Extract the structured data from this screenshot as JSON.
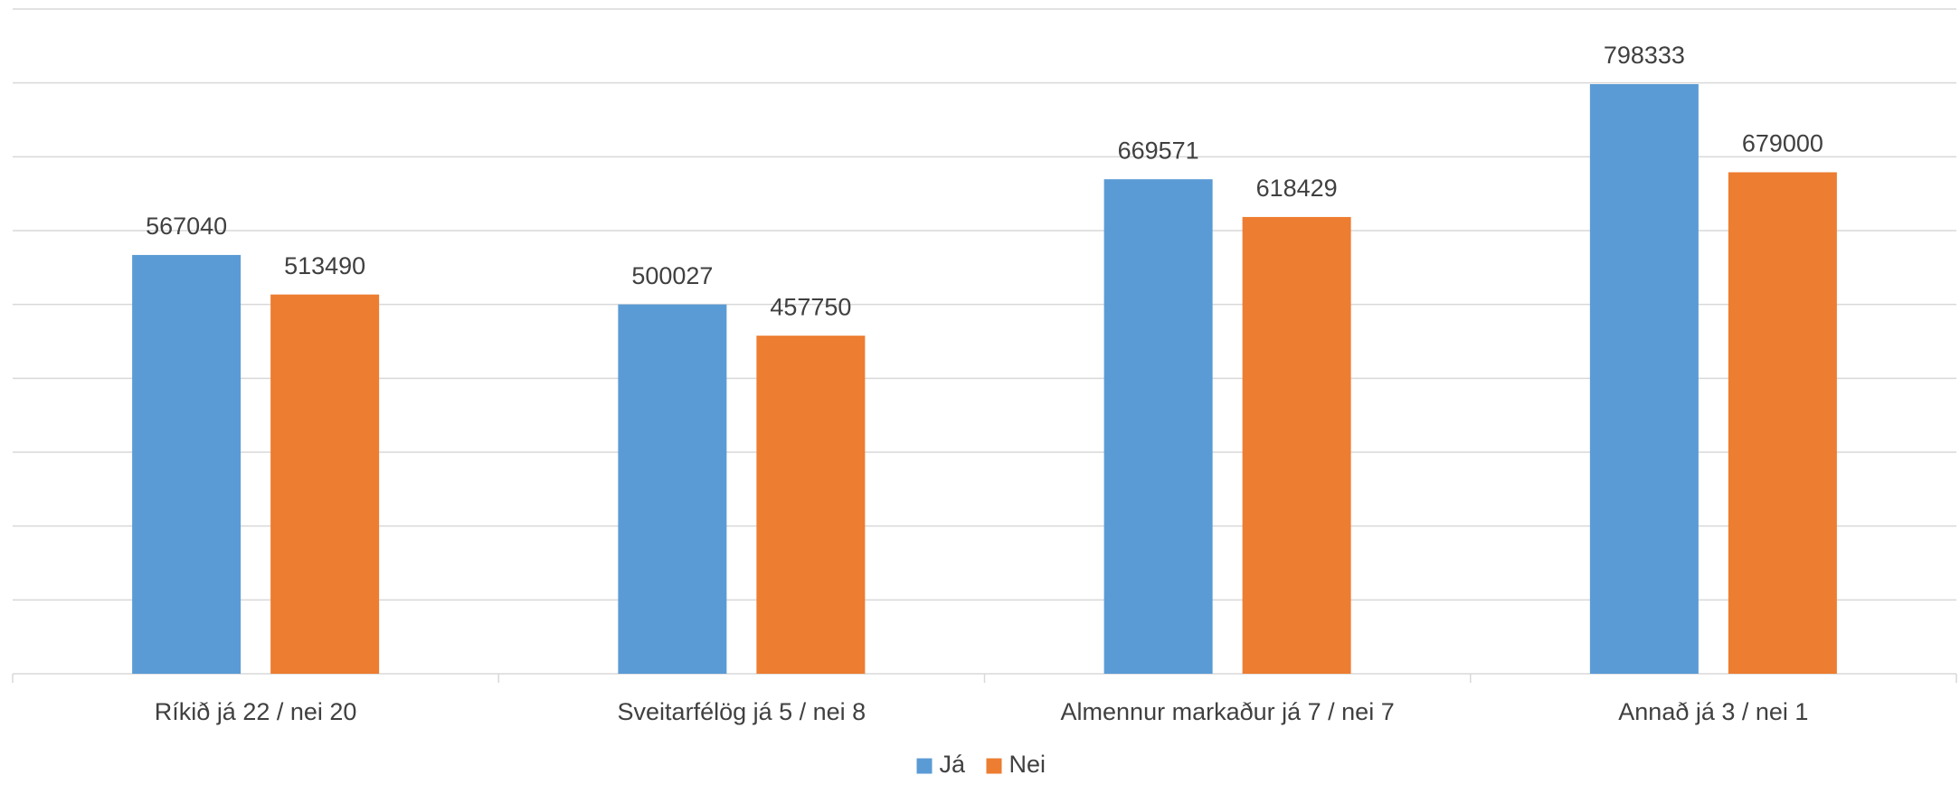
{
  "chart_data": {
    "type": "bar",
    "categories": [
      "Ríkið já 22 / nei 20",
      "Sveitarfélög já 5 / nei 8",
      "Almennur markaður já 7 / nei 7",
      "Annað já 3 / nei 1"
    ],
    "series": [
      {
        "name": "Já",
        "color": "#5b9bd5",
        "values": [
          567040,
          500027,
          669571,
          798333
        ]
      },
      {
        "name": "Nei",
        "color": "#ed7d31",
        "values": [
          513490,
          457750,
          618429,
          679000
        ]
      }
    ],
    "ylim": [
      0,
      900000
    ],
    "yticks": [
      0,
      100000,
      200000,
      300000,
      400000,
      500000,
      600000,
      700000,
      800000,
      900000
    ],
    "grid": true,
    "legend": "bottom"
  }
}
